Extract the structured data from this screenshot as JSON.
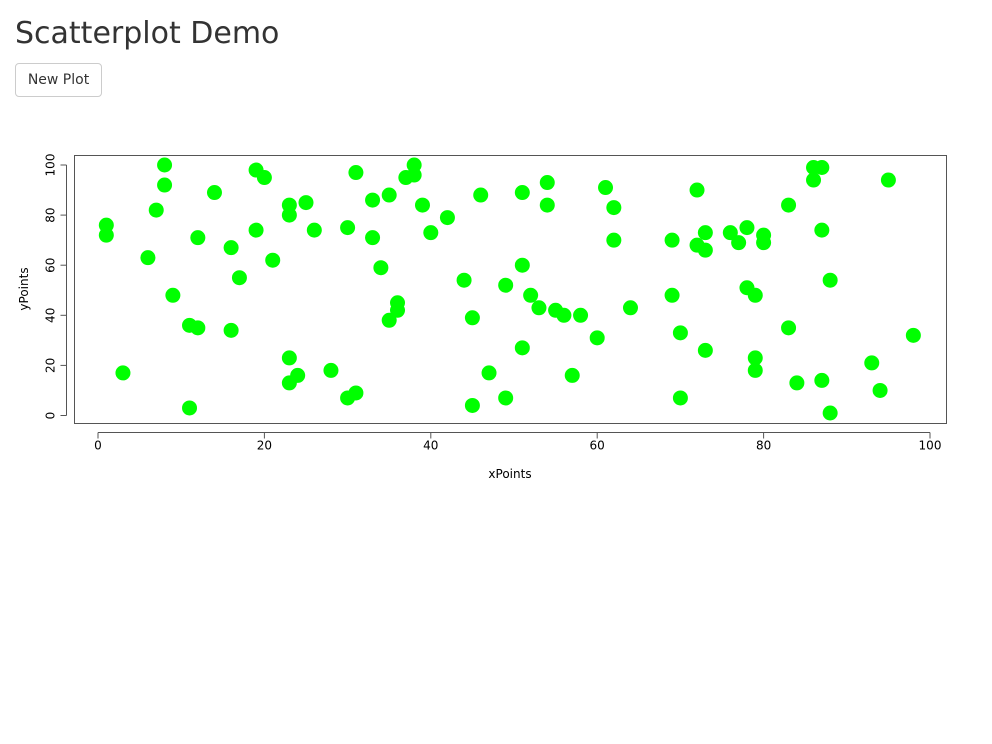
{
  "page": {
    "title": "Scatterplot Demo",
    "new_plot_label": "New Plot"
  },
  "chart_data": {
    "type": "scatter",
    "xlabel": "xPoints",
    "ylabel": "yPoints",
    "xlim": [
      -3,
      102
    ],
    "ylim": [
      -3,
      102
    ],
    "xticks": [
      0,
      20,
      40,
      60,
      80,
      100
    ],
    "yticks": [
      0,
      20,
      40,
      60,
      80,
      100
    ],
    "grid": false,
    "point_color": "#00ff00",
    "points": [
      [
        1,
        76
      ],
      [
        1,
        72
      ],
      [
        3,
        17
      ],
      [
        6,
        63
      ],
      [
        7,
        82
      ],
      [
        8,
        100
      ],
      [
        8,
        92
      ],
      [
        9,
        48
      ],
      [
        11,
        36
      ],
      [
        11,
        3
      ],
      [
        12,
        35
      ],
      [
        12,
        71
      ],
      [
        14,
        89
      ],
      [
        16,
        67
      ],
      [
        16,
        34
      ],
      [
        17,
        55
      ],
      [
        19,
        98
      ],
      [
        19,
        74
      ],
      [
        20,
        95
      ],
      [
        21,
        62
      ],
      [
        23,
        84
      ],
      [
        23,
        80
      ],
      [
        23,
        23
      ],
      [
        23,
        13
      ],
      [
        24,
        16
      ],
      [
        25,
        85
      ],
      [
        26,
        74
      ],
      [
        28,
        18
      ],
      [
        30,
        75
      ],
      [
        30,
        7
      ],
      [
        31,
        97
      ],
      [
        31,
        9
      ],
      [
        33,
        86
      ],
      [
        33,
        71
      ],
      [
        34,
        59
      ],
      [
        35,
        88
      ],
      [
        35,
        38
      ],
      [
        36,
        45
      ],
      [
        36,
        42
      ],
      [
        37,
        95
      ],
      [
        38,
        100
      ],
      [
        38,
        96
      ],
      [
        39,
        84
      ],
      [
        40,
        73
      ],
      [
        42,
        79
      ],
      [
        44,
        54
      ],
      [
        45,
        39
      ],
      [
        45,
        4
      ],
      [
        46,
        88
      ],
      [
        47,
        17
      ],
      [
        49,
        52
      ],
      [
        49,
        7
      ],
      [
        51,
        89
      ],
      [
        51,
        60
      ],
      [
        51,
        27
      ],
      [
        52,
        48
      ],
      [
        53,
        43
      ],
      [
        54,
        93
      ],
      [
        54,
        84
      ],
      [
        55,
        42
      ],
      [
        56,
        40
      ],
      [
        57,
        16
      ],
      [
        58,
        40
      ],
      [
        60,
        31
      ],
      [
        61,
        91
      ],
      [
        62,
        83
      ],
      [
        62,
        70
      ],
      [
        64,
        43
      ],
      [
        69,
        70
      ],
      [
        69,
        48
      ],
      [
        70,
        33
      ],
      [
        70,
        7
      ],
      [
        72,
        90
      ],
      [
        72,
        68
      ],
      [
        73,
        73
      ],
      [
        73,
        66
      ],
      [
        73,
        26
      ],
      [
        76,
        73
      ],
      [
        77,
        69
      ],
      [
        78,
        75
      ],
      [
        78,
        51
      ],
      [
        79,
        48
      ],
      [
        79,
        23
      ],
      [
        79,
        18
      ],
      [
        80,
        72
      ],
      [
        80,
        69
      ],
      [
        83,
        84
      ],
      [
        83,
        35
      ],
      [
        84,
        13
      ],
      [
        86,
        99
      ],
      [
        86,
        94
      ],
      [
        87,
        99
      ],
      [
        87,
        74
      ],
      [
        87,
        14
      ],
      [
        88,
        54
      ],
      [
        88,
        1
      ],
      [
        93,
        21
      ],
      [
        94,
        10
      ],
      [
        95,
        94
      ],
      [
        98,
        32
      ]
    ]
  }
}
